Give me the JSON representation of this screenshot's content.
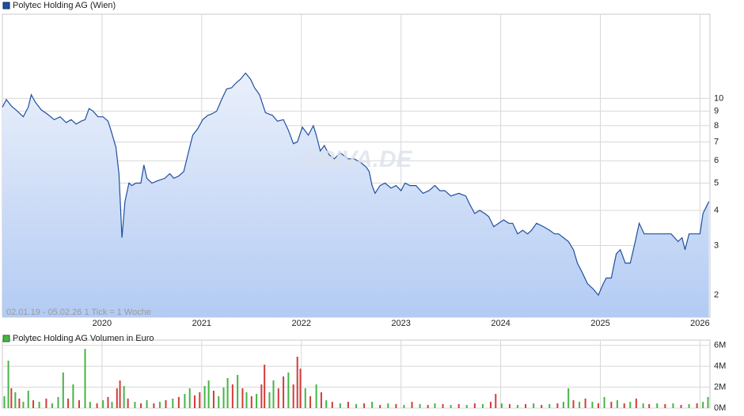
{
  "chart_data": [
    {
      "type": "line",
      "log_scale": true,
      "grid": true,
      "note": "02.01.19 - 05.02.26   1 Tick = 1 Woche",
      "watermark": "ARIVA.DE",
      "xlim": [
        2019.0,
        2026.1
      ],
      "xticks": [
        2020,
        2021,
        2022,
        2023,
        2024,
        2025,
        2026
      ],
      "ylim": [
        1.67,
        19.9
      ],
      "yticks": [
        2,
        3,
        4,
        5,
        6,
        7,
        8,
        9,
        10
      ],
      "x": [
        2019.0,
        2019.04,
        2019.09,
        2019.15,
        2019.21,
        2019.26,
        2019.29,
        2019.33,
        2019.39,
        2019.45,
        2019.52,
        2019.58,
        2019.64,
        2019.69,
        2019.74,
        2019.79,
        2019.83,
        2019.87,
        2019.91,
        2019.96,
        2020.01,
        2020.06,
        2020.09,
        2020.14,
        2020.17,
        2020.2,
        2020.23,
        2020.27,
        2020.3,
        2020.34,
        2020.39,
        2020.42,
        2020.45,
        2020.5,
        2020.56,
        2020.63,
        2020.68,
        2020.72,
        2020.77,
        2020.82,
        2020.87,
        2020.91,
        2020.96,
        2021.01,
        2021.06,
        2021.1,
        2021.15,
        2021.2,
        2021.25,
        2021.3,
        2021.34,
        2021.39,
        2021.44,
        2021.49,
        2021.53,
        2021.58,
        2021.64,
        2021.71,
        2021.76,
        2021.82,
        2021.87,
        2021.92,
        2021.96,
        2022.01,
        2022.07,
        2022.12,
        2022.15,
        2022.19,
        2022.23,
        2022.28,
        2022.33,
        2022.39,
        2022.47,
        2022.53,
        2022.6,
        2022.65,
        2022.68,
        2022.71,
        2022.74,
        2022.79,
        2022.84,
        2022.9,
        2022.95,
        2023.0,
        2023.04,
        2023.09,
        2023.15,
        2023.22,
        2023.28,
        2023.34,
        2023.39,
        2023.44,
        2023.5,
        2023.58,
        2023.65,
        2023.69,
        2023.74,
        2023.79,
        2023.84,
        2023.88,
        2023.93,
        2023.98,
        2024.03,
        2024.08,
        2024.12,
        2024.17,
        2024.22,
        2024.27,
        2024.31,
        2024.36,
        2024.43,
        2024.49,
        2024.54,
        2024.58,
        2024.63,
        2024.68,
        2024.73,
        2024.77,
        2024.82,
        2024.87,
        2024.93,
        2024.98,
        2025.03,
        2025.06,
        2025.11,
        2025.16,
        2025.2,
        2025.25,
        2025.3,
        2025.35,
        2025.39,
        2025.44,
        2025.49,
        2025.57,
        2025.65,
        2025.71,
        2025.78,
        2025.82,
        2025.85,
        2025.89,
        2025.93,
        2026.0,
        2026.03,
        2026.06,
        2026.09
      ],
      "series": [
        {
          "name": "Polytec Holding AG (Wien)",
          "color": "#1f4f9f",
          "values": [
            9.3,
            9.9,
            9.4,
            9.0,
            8.6,
            9.3,
            10.3,
            9.7,
            9.1,
            8.8,
            8.4,
            8.6,
            8.2,
            8.4,
            8.1,
            8.3,
            8.4,
            9.2,
            9.0,
            8.6,
            8.6,
            8.3,
            7.7,
            6.7,
            5.4,
            3.2,
            4.3,
            5.0,
            4.9,
            5.0,
            5.0,
            5.8,
            5.2,
            5.0,
            5.1,
            5.2,
            5.4,
            5.2,
            5.3,
            5.5,
            6.5,
            7.4,
            7.8,
            8.4,
            8.7,
            8.8,
            9.0,
            9.9,
            10.8,
            10.9,
            11.3,
            11.7,
            12.3,
            11.7,
            10.9,
            10.3,
            8.9,
            8.7,
            8.3,
            8.4,
            7.7,
            6.9,
            7.0,
            7.9,
            7.4,
            8.0,
            7.4,
            6.5,
            6.8,
            6.3,
            6.1,
            6.4,
            6.1,
            6.1,
            5.9,
            5.7,
            5.5,
            4.9,
            4.6,
            4.9,
            5.0,
            4.8,
            4.9,
            4.7,
            5.0,
            4.9,
            4.9,
            4.6,
            4.7,
            4.9,
            4.7,
            4.7,
            4.5,
            4.6,
            4.5,
            4.2,
            3.9,
            4.0,
            3.9,
            3.8,
            3.5,
            3.6,
            3.7,
            3.6,
            3.6,
            3.3,
            3.4,
            3.3,
            3.4,
            3.6,
            3.5,
            3.4,
            3.3,
            3.3,
            3.2,
            3.1,
            2.9,
            2.6,
            2.4,
            2.2,
            2.1,
            2.0,
            2.2,
            2.3,
            2.3,
            2.8,
            2.9,
            2.6,
            2.6,
            3.1,
            3.6,
            3.3,
            3.3,
            3.3,
            3.3,
            3.3,
            3.1,
            3.2,
            2.9,
            3.3,
            3.3,
            3.3,
            3.9,
            4.1,
            4.3
          ]
        }
      ]
    },
    {
      "type": "bar",
      "grid": true,
      "xlim": [
        2019.0,
        2026.1
      ],
      "ylim": [
        0,
        6.5
      ],
      "yticks": [
        {
          "value": 0,
          "label": "0M"
        },
        {
          "value": 2,
          "label": "2M"
        },
        {
          "value": 4,
          "label": "4M"
        },
        {
          "value": 6,
          "label": "6M"
        }
      ],
      "x": [
        2019.02,
        2019.06,
        2019.09,
        2019.13,
        2019.17,
        2019.21,
        2019.26,
        2019.31,
        2019.37,
        2019.44,
        2019.5,
        2019.56,
        2019.61,
        2019.66,
        2019.71,
        2019.77,
        2019.83,
        2019.88,
        2019.95,
        2020.01,
        2020.06,
        2020.1,
        2020.15,
        2020.18,
        2020.22,
        2020.26,
        2020.33,
        2020.39,
        2020.45,
        2020.52,
        2020.58,
        2020.64,
        2020.71,
        2020.77,
        2020.83,
        2020.88,
        2020.93,
        2020.98,
        2021.03,
        2021.07,
        2021.12,
        2021.17,
        2021.22,
        2021.26,
        2021.31,
        2021.36,
        2021.41,
        2021.45,
        2021.5,
        2021.55,
        2021.6,
        2021.63,
        2021.68,
        2021.72,
        2021.77,
        2021.82,
        2021.87,
        2021.92,
        2021.96,
        2021.99,
        2022.04,
        2022.09,
        2022.15,
        2022.2,
        2022.25,
        2022.31,
        2022.39,
        2022.47,
        2022.55,
        2022.63,
        2022.71,
        2022.79,
        2022.87,
        2022.95,
        2023.03,
        2023.11,
        2023.19,
        2023.27,
        2023.34,
        2023.42,
        2023.5,
        2023.58,
        2023.66,
        2023.74,
        2023.82,
        2023.9,
        2023.95,
        2024.01,
        2024.09,
        2024.17,
        2024.25,
        2024.33,
        2024.41,
        2024.49,
        2024.57,
        2024.63,
        2024.68,
        2024.73,
        2024.79,
        2024.85,
        2024.92,
        2024.98,
        2025.04,
        2025.11,
        2025.17,
        2025.24,
        2025.3,
        2025.36,
        2025.43,
        2025.49,
        2025.57,
        2025.65,
        2025.73,
        2025.81,
        2025.89,
        2025.97,
        2026.03,
        2026.08
      ],
      "series": [
        {
          "name": "Polytec Holding AG Volumen in Euro",
          "color": "#46b446",
          "values": [
            1.13,
            4.53,
            1.89,
            1.51,
            0.91,
            0.6,
            1.66,
            0.75,
            0.6,
            0.91,
            0.45,
            1.06,
            3.4,
            0.91,
            2.26,
            0.75,
            5.66,
            0.6,
            0.45,
            0.75,
            1.06,
            0.6,
            1.89,
            2.64,
            2.11,
            0.91,
            0.6,
            0.45,
            0.75,
            0.45,
            0.6,
            0.75,
            0.91,
            1.06,
            1.36,
            1.89,
            1.21,
            1.51,
            2.11,
            2.64,
            1.66,
            1.13,
            1.96,
            2.87,
            2.26,
            3.17,
            1.89,
            1.51,
            1.13,
            1.36,
            2.26,
            4.15,
            1.51,
            2.64,
            1.89,
            3.02,
            3.4,
            2.26,
            4.91,
            3.77,
            1.89,
            1.13,
            2.26,
            1.51,
            0.75,
            0.6,
            0.45,
            0.6,
            0.38,
            0.45,
            0.6,
            0.3,
            0.45,
            0.38,
            0.3,
            0.6,
            0.38,
            0.3,
            0.45,
            0.38,
            0.3,
            0.38,
            0.3,
            0.45,
            0.38,
            0.6,
            1.36,
            0.45,
            0.38,
            0.3,
            0.38,
            0.45,
            0.3,
            0.38,
            0.45,
            0.6,
            1.89,
            0.75,
            0.6,
            0.91,
            0.6,
            0.45,
            1.06,
            0.6,
            0.75,
            0.45,
            0.6,
            0.91,
            0.45,
            0.38,
            0.45,
            0.38,
            0.45,
            0.3,
            0.38,
            0.45,
            0.6,
            1.06
          ],
          "colors": [
            "#46b446",
            "#46b446",
            "#d23c3c",
            "#46b446",
            "#d23c3c",
            "#46b446",
            "#46b446",
            "#d23c3c",
            "#46b446",
            "#d23c3c",
            "#46b446",
            "#46b446",
            "#46b446",
            "#d23c3c",
            "#46b446",
            "#d23c3c",
            "#46b446",
            "#46b446",
            "#d23c3c",
            "#46b446",
            "#d23c3c",
            "#46b446",
            "#d23c3c",
            "#d23c3c",
            "#46b446",
            "#d23c3c",
            "#46b446",
            "#d23c3c",
            "#46b446",
            "#d23c3c",
            "#46b446",
            "#d23c3c",
            "#46b446",
            "#d23c3c",
            "#46b446",
            "#46b446",
            "#d23c3c",
            "#d23c3c",
            "#46b446",
            "#46b446",
            "#d23c3c",
            "#46b446",
            "#46b446",
            "#46b446",
            "#d23c3c",
            "#46b446",
            "#d23c3c",
            "#46b446",
            "#d23c3c",
            "#46b446",
            "#d23c3c",
            "#d23c3c",
            "#46b446",
            "#46b446",
            "#d23c3c",
            "#d23c3c",
            "#46b446",
            "#d23c3c",
            "#d23c3c",
            "#d23c3c",
            "#46b446",
            "#d23c3c",
            "#46b446",
            "#d23c3c",
            "#46b446",
            "#d23c3c",
            "#46b446",
            "#d23c3c",
            "#46b446",
            "#d23c3c",
            "#46b446",
            "#d23c3c",
            "#46b446",
            "#d23c3c",
            "#46b446",
            "#d23c3c",
            "#46b446",
            "#d23c3c",
            "#46b446",
            "#d23c3c",
            "#46b446",
            "#d23c3c",
            "#46b446",
            "#d23c3c",
            "#46b446",
            "#d23c3c",
            "#d23c3c",
            "#46b446",
            "#d23c3c",
            "#46b446",
            "#d23c3c",
            "#46b446",
            "#d23c3c",
            "#46b446",
            "#d23c3c",
            "#46b446",
            "#46b446",
            "#d23c3c",
            "#46b446",
            "#d23c3c",
            "#46b446",
            "#d23c3c",
            "#46b446",
            "#d23c3c",
            "#46b446",
            "#d23c3c",
            "#46b446",
            "#d23c3c",
            "#46b446",
            "#d23c3c",
            "#46b446",
            "#d23c3c",
            "#46b446",
            "#d23c3c",
            "#46b446",
            "#d23c3c",
            "#46b446",
            "#46b446"
          ]
        }
      ]
    }
  ]
}
